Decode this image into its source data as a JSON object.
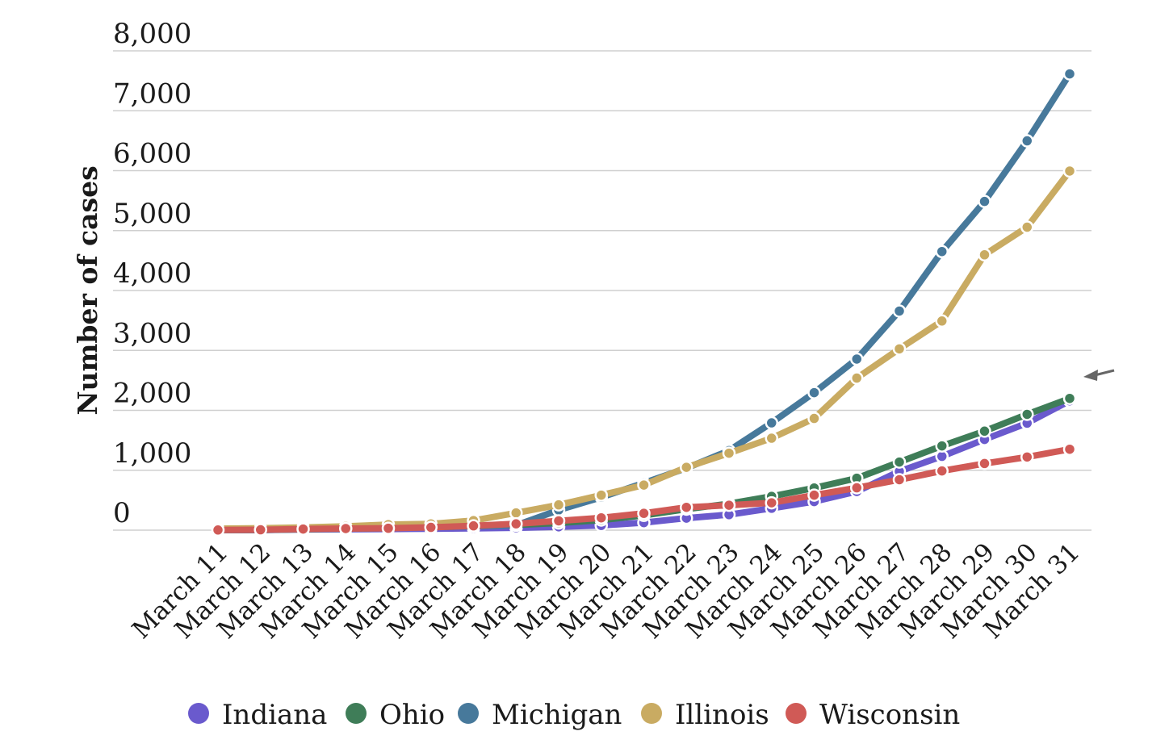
{
  "chart_data": {
    "type": "line",
    "ylabel": "Number of cases",
    "xlabel": "",
    "ylim": [
      0,
      8000
    ],
    "yticks": [
      0,
      1000,
      2000,
      3000,
      4000,
      5000,
      6000,
      7000,
      8000
    ],
    "ytick_labels": [
      "0",
      "1,000",
      "2,000",
      "3,000",
      "4,000",
      "5,000",
      "6,000",
      "7,000",
      "8,000"
    ],
    "grid": true,
    "legend_position": "bottom",
    "categories": [
      "March 11",
      "March 12",
      "March 13",
      "March 14",
      "March 15",
      "March 16",
      "March 17",
      "March 18",
      "March 19",
      "March 20",
      "March 21",
      "March 22",
      "March 23",
      "March 24",
      "March 25",
      "March 26",
      "March 27",
      "March 28",
      "March 29",
      "March 30",
      "March 31"
    ],
    "series": [
      {
        "name": "Indiana",
        "color": "#6a5acd",
        "values": [
          1,
          2,
          12,
          15,
          19,
          24,
          30,
          39,
          56,
          79,
          126,
          201,
          259,
          365,
          477,
          645,
          981,
          1232,
          1514,
          1786,
          2159
        ]
      },
      {
        "name": "Ohio",
        "color": "#3f7d58",
        "values": [
          4,
          5,
          13,
          26,
          37,
          50,
          67,
          88,
          119,
          169,
          247,
          351,
          442,
          564,
          704,
          867,
          1137,
          1406,
          1653,
          1933,
          2199
        ]
      },
      {
        "name": "Michigan",
        "color": "#47799b",
        "values": [
          2,
          2,
          16,
          25,
          33,
          53,
          65,
          80,
          336,
          549,
          787,
          1035,
          1328,
          1791,
          2295,
          2856,
          3657,
          4650,
          5486,
          6498,
          7615
        ]
      },
      {
        "name": "Illinois",
        "color": "#c9ab62",
        "values": [
          25,
          32,
          46,
          64,
          93,
          105,
          160,
          288,
          422,
          585,
          753,
          1049,
          1285,
          1535,
          1865,
          2538,
          3026,
          3491,
          4596,
          5057,
          5994
        ]
      },
      {
        "name": "Wisconsin",
        "color": "#d05a56",
        "values": [
          3,
          6,
          19,
          27,
          32,
          47,
          72,
          106,
          155,
          206,
          281,
          381,
          416,
          457,
          585,
          707,
          842,
          989,
          1112,
          1221,
          1351
        ]
      }
    ]
  }
}
